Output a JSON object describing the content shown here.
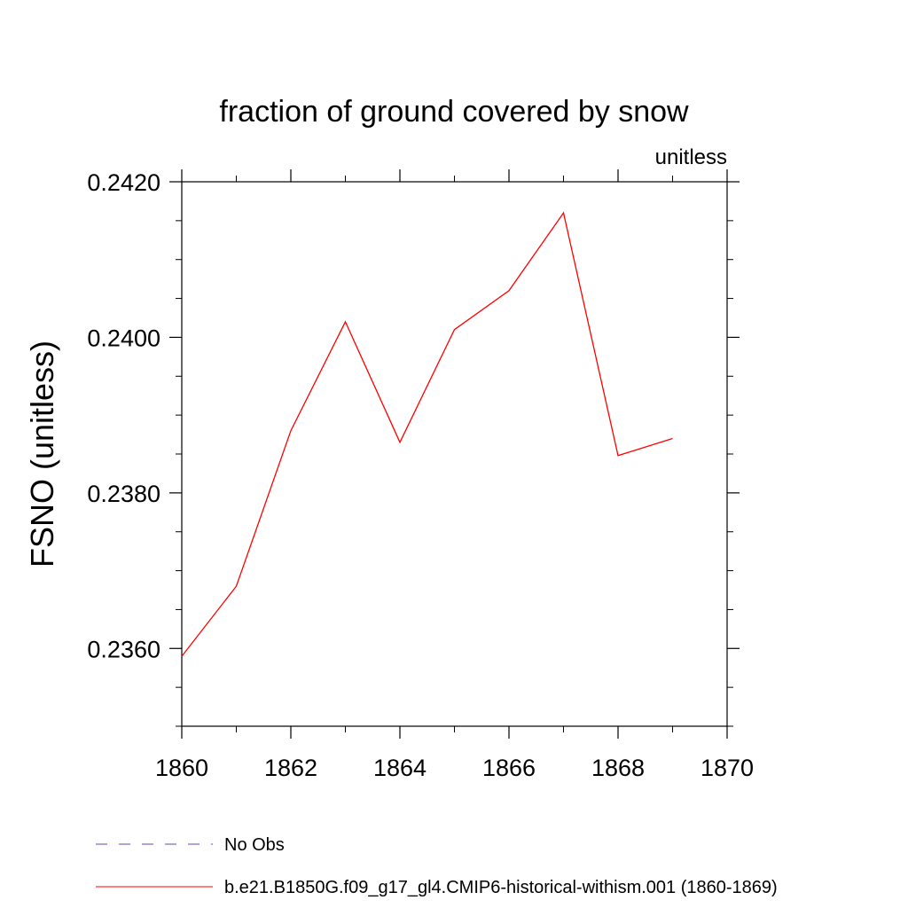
{
  "chart_data": {
    "type": "line",
    "title": "fraction of ground covered by snow",
    "units": "unitless",
    "xlabel": "",
    "ylabel": "FSNO  (unitless)",
    "xlim": [
      1860,
      1870
    ],
    "ylim": [
      0.235,
      0.242
    ],
    "x_ticks": [
      1860,
      1862,
      1864,
      1866,
      1868,
      1870
    ],
    "x_tick_labels": [
      "1860",
      "1862",
      "1864",
      "1866",
      "1868",
      "1870"
    ],
    "x_minor_tick_step": 1,
    "y_ticks": [
      0.236,
      0.238,
      0.24,
      0.242
    ],
    "y_tick_labels": [
      "0.2360",
      "0.2380",
      "0.2400",
      "0.2420"
    ],
    "y_minor_tick_step": 0.0005,
    "grid": false,
    "legend_position": "bottom",
    "series": [
      {
        "name": "b.e21.B1850G.f09_g17_gl4.CMIP6-historical-withism.001 (1860-1869)",
        "color": "#ff0000",
        "dash": "solid",
        "x": [
          1860,
          1861,
          1862,
          1863,
          1864,
          1865,
          1866,
          1867,
          1868,
          1869
        ],
        "y": [
          0.2359,
          0.2368,
          0.2388,
          0.2402,
          0.23865,
          0.2401,
          0.2406,
          0.2416,
          0.23848,
          0.2387
        ]
      }
    ],
    "legend": [
      {
        "label": "No Obs",
        "color": "#5a4fb0",
        "dash": "dashed"
      },
      {
        "label": "b.e21.B1850G.f09_g17_gl4.CMIP6-historical-withism.001 (1860-1869)",
        "color": "#ff0000",
        "dash": "solid"
      }
    ]
  }
}
